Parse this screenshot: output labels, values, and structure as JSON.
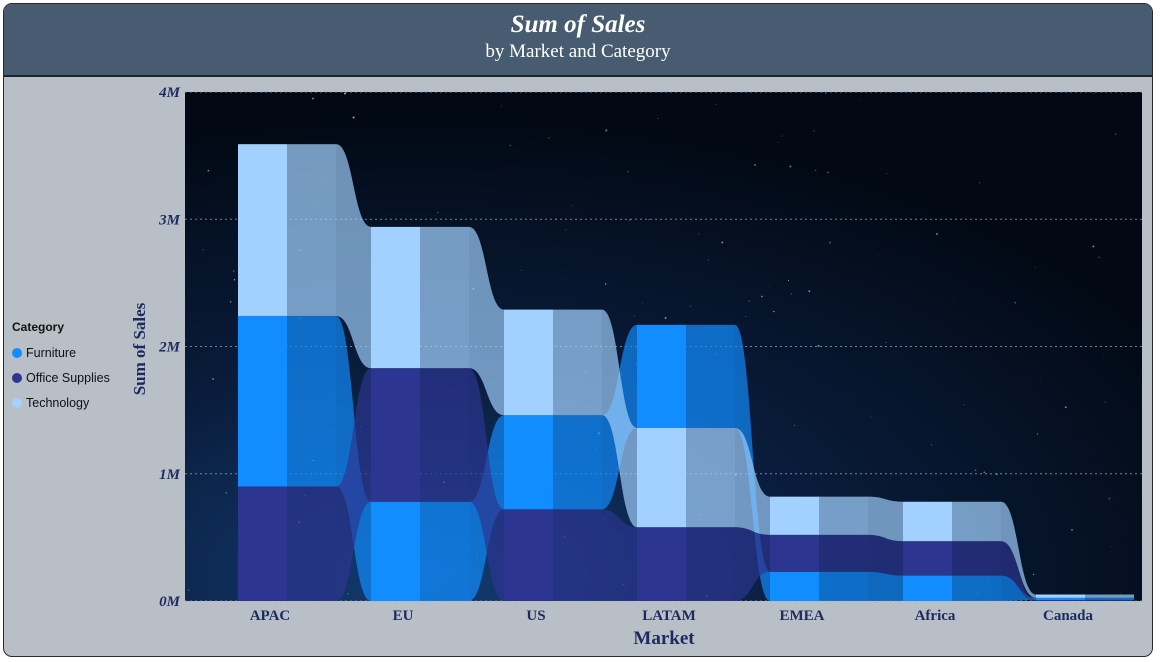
{
  "header": {
    "title": "Sum of Sales",
    "subtitle": "by Market and Category"
  },
  "legend": {
    "title": "Category",
    "items": [
      {
        "label": "Furniture",
        "color": "#118dff"
      },
      {
        "label": "Office Supplies",
        "color": "#2c3590"
      },
      {
        "label": "Technology",
        "color": "#a2d1ff"
      }
    ]
  },
  "chart_data": {
    "type": "bar",
    "stacked": true,
    "style": "ribbon",
    "title": "Sum of Sales",
    "subtitle": "by Market and Category",
    "xlabel": "Market",
    "ylabel": "Sum of Sales",
    "categories": [
      "APAC",
      "EU",
      "US",
      "LATAM",
      "EMEA",
      "Africa",
      "Canada"
    ],
    "series": [
      {
        "name": "Furniture",
        "color": "#118dff",
        "values": [
          1340000,
          780000,
          740000,
          810000,
          230000,
          200000,
          17000
        ]
      },
      {
        "name": "Office Supplies",
        "color": "#2c3590",
        "values": [
          900000,
          1050000,
          720000,
          580000,
          290000,
          270000,
          8000
        ]
      },
      {
        "name": "Technology",
        "color": "#a2d1ff",
        "values": [
          1350000,
          1110000,
          830000,
          780000,
          300000,
          310000,
          26000
        ]
      }
    ],
    "y_ticks": [
      "0M",
      "1M",
      "2M",
      "3M",
      "4M"
    ],
    "ylim": [
      0,
      4000000
    ],
    "grid": true,
    "legend_position": "left"
  }
}
